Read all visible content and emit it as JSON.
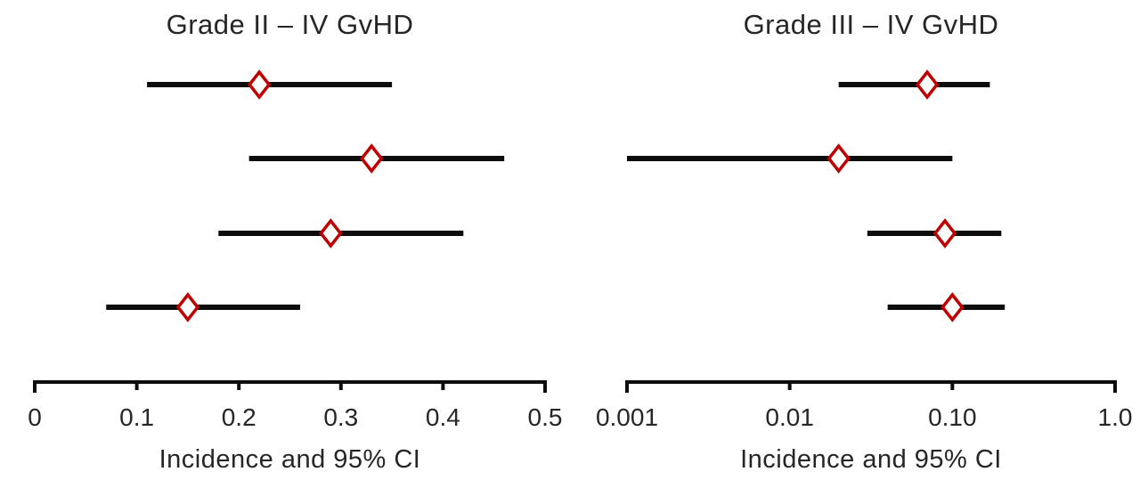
{
  "figure": {
    "background": "#ffffff",
    "text_color": "#262626",
    "line_color": "#0d0d0d",
    "marker_stroke_color": "#c00000",
    "marker_fill_color": "#ffffff"
  },
  "chart_data": [
    {
      "type": "scatter",
      "variant": "forest-plot",
      "title": "Grade II – IV GvHD",
      "xlabel": "Incidence and 95% CI",
      "xscale": "linear",
      "xlim": [
        0,
        0.5
      ],
      "xticks": [
        0,
        0.1,
        0.2,
        0.3,
        0.4,
        0.5
      ],
      "xtick_labels": [
        "0",
        "0.1",
        "0.2",
        "0.3",
        "0.4",
        "0.5"
      ],
      "grid": false,
      "legend": null,
      "rows": [
        {
          "estimate": 0.22,
          "ci_lower": 0.11,
          "ci_upper": 0.35
        },
        {
          "estimate": 0.33,
          "ci_lower": 0.21,
          "ci_upper": 0.46
        },
        {
          "estimate": 0.29,
          "ci_lower": 0.18,
          "ci_upper": 0.42
        },
        {
          "estimate": 0.15,
          "ci_lower": 0.07,
          "ci_upper": 0.26
        }
      ]
    },
    {
      "type": "scatter",
      "variant": "forest-plot",
      "title": "Grade III – IV GvHD",
      "xlabel": "Incidence and 95% CI",
      "xscale": "log",
      "xlim": [
        0.001,
        1.0
      ],
      "xticks": [
        0.001,
        0.01,
        0.1,
        1.0
      ],
      "xtick_labels": [
        "0.001",
        "0.01",
        "0.10",
        "1.0"
      ],
      "grid": false,
      "legend": null,
      "rows": [
        {
          "estimate": 0.07,
          "ci_lower": 0.02,
          "ci_upper": 0.17
        },
        {
          "estimate": 0.02,
          "ci_lower": 0.001,
          "ci_upper": 0.1
        },
        {
          "estimate": 0.09,
          "ci_lower": 0.03,
          "ci_upper": 0.2
        },
        {
          "estimate": 0.1,
          "ci_lower": 0.04,
          "ci_upper": 0.21
        }
      ]
    }
  ]
}
